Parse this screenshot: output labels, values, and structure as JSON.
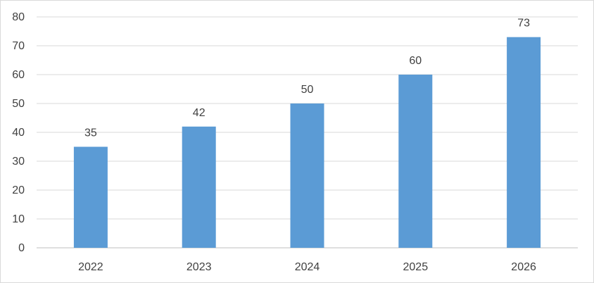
{
  "chart_data": {
    "type": "bar",
    "title": "",
    "xlabel": "",
    "ylabel": "",
    "categories": [
      "2022",
      "2023",
      "2024",
      "2025",
      "2026"
    ],
    "values": [
      35,
      42,
      50,
      60,
      73
    ],
    "data_labels": [
      "35",
      "42",
      "50",
      "60",
      "73"
    ],
    "ylim": [
      0,
      80
    ],
    "yticks": [
      0,
      10,
      20,
      30,
      40,
      50,
      60,
      70,
      80
    ],
    "ytick_labels": [
      "0",
      "10",
      "20",
      "30",
      "40",
      "50",
      "60",
      "70",
      "80"
    ],
    "grid": true,
    "legend": "none",
    "colors": {
      "bar": "#5b9bd5",
      "grid": "#d9d9d9",
      "axis": "#bfbfbf",
      "text": "#404040"
    }
  }
}
